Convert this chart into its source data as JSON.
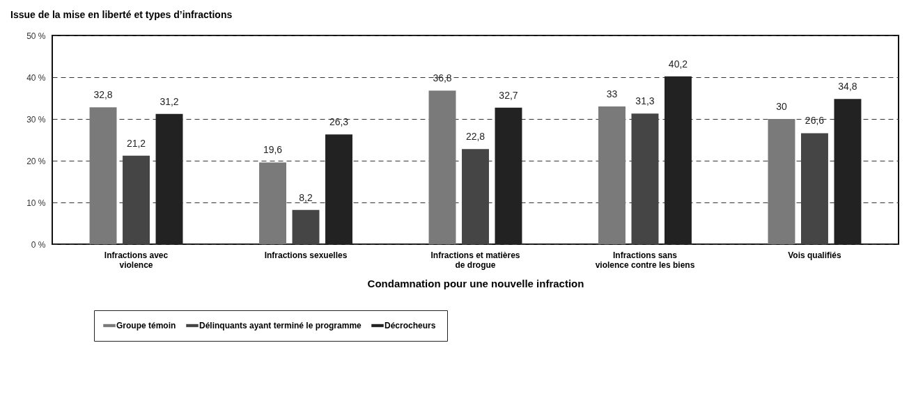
{
  "chart_data": {
    "type": "bar",
    "title": "Issue de la mise en liberté et types d’infractions",
    "xlabel": "Condamnation pour une nouvelle infraction",
    "categories": [
      "Infractions avec violence",
      "Infractions sexuelles",
      "Infractions et matières de drogue",
      "Infractions sans violence contre les biens",
      "Vois qualifiés"
    ],
    "series": [
      {
        "name": "Groupe témoin",
        "color": "#7a7a7a",
        "values": [
          32.8,
          19.6,
          36.8,
          33,
          30
        ],
        "value_labels": [
          "32,8",
          "19,6",
          "36,8",
          "33",
          "30"
        ]
      },
      {
        "name": "Délinquants ayant terminé le programme",
        "color": "#454545",
        "values": [
          21.2,
          8.2,
          22.8,
          31.3,
          26.6
        ],
        "value_labels": [
          "21,2",
          "8,2",
          "22,8",
          "31,3",
          "26,6"
        ]
      },
      {
        "name": "Décrocheurs",
        "color": "#222222",
        "values": [
          31.2,
          26.3,
          32.7,
          40.2,
          34.8
        ],
        "value_labels": [
          "31,2",
          "26,3",
          "32,7",
          "40,2",
          "34,8"
        ]
      }
    ],
    "ylim": [
      0,
      50
    ],
    "yticks": [
      {
        "value": 0,
        "label": "0 %"
      },
      {
        "value": 10,
        "label": "10 %"
      },
      {
        "value": 20,
        "label": "20 %"
      },
      {
        "value": 30,
        "label": "30 %"
      },
      {
        "value": 40,
        "label": "40 %"
      },
      {
        "value": 50,
        "label": "50 %"
      }
    ],
    "grid": "y",
    "legend": "bottom left"
  }
}
